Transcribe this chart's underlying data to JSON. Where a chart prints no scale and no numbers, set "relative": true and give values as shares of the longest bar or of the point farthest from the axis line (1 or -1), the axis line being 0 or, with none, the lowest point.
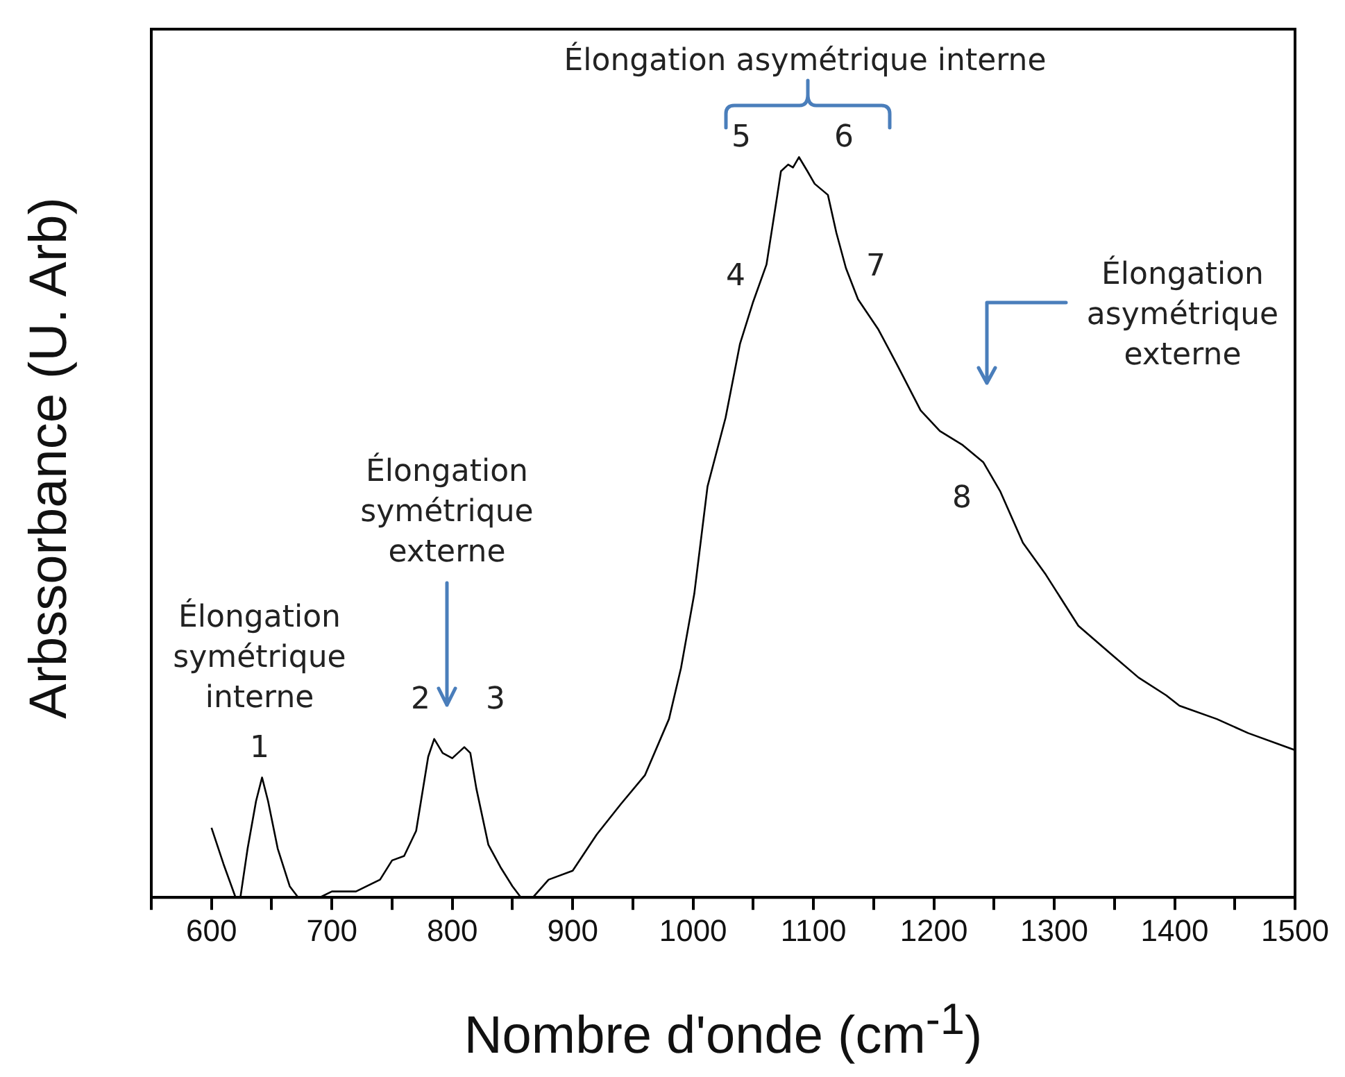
{
  "chart_data": {
    "type": "line",
    "xlabel": "Nombre d'onde (cm$^{-1}$)",
    "ylabel": "Arbssorbance (U. Arb)",
    "relative": true,
    "xlim": [
      550,
      1500
    ],
    "xticks": [
      {
        "value": 550,
        "label": null
      },
      600,
      {
        "value": 650,
        "label": null
      },
      700,
      {
        "value": 750,
        "label": null
      },
      800,
      {
        "value": 850,
        "label": null
      },
      900,
      {
        "value": 950,
        "label": null
      },
      1000,
      {
        "value": 1050,
        "label": null
      },
      1100,
      {
        "value": 1150,
        "label": null
      },
      1200,
      {
        "value": 1250,
        "label": null
      },
      1300,
      {
        "value": 1350,
        "label": null
      },
      1400,
      {
        "value": 1450,
        "label": null
      },
      1500
    ],
    "line_style": "solid",
    "marker": "none",
    "series": [
      {
        "color": "#000000",
        "x": [
          600,
          610,
          620,
          624,
          630,
          637,
          642,
          647,
          655,
          665,
          672,
          690,
          700,
          720,
          740,
          750,
          760,
          770,
          780,
          785,
          792,
          800,
          810,
          815,
          820,
          830,
          840,
          850,
          857,
          867,
          880,
          900,
          920,
          940,
          960,
          980,
          990,
          1001,
          1012,
          1027,
          1039,
          1050,
          1061,
          1070,
          1073,
          1079,
          1083,
          1088,
          1095,
          1101,
          1112,
          1119,
          1127,
          1137,
          1154,
          1170,
          1189,
          1205,
          1224,
          1241,
          1255,
          1274,
          1293,
          1320,
          1347,
          1370,
          1393,
          1404,
          1435,
          1461,
          1500
        ],
        "values": [
          0.094,
          0.045,
          0,
          0,
          0.066,
          0.13,
          0.162,
          0.13,
          0.066,
          0.015,
          0,
          0,
          0.008,
          0.008,
          0.024,
          0.05,
          0.056,
          0.09,
          0.19,
          0.214,
          0.195,
          0.188,
          0.203,
          0.195,
          0.147,
          0.071,
          0.041,
          0.015,
          0,
          0,
          0.024,
          0.036,
          0.085,
          0.126,
          0.165,
          0.241,
          0.31,
          0.41,
          0.555,
          0.648,
          0.748,
          0.805,
          0.855,
          0.949,
          0.981,
          0.99,
          0.986,
          1,
          0.981,
          0.964,
          0.949,
          0.898,
          0.85,
          0.808,
          0.767,
          0.718,
          0.658,
          0.63,
          0.611,
          0.588,
          0.549,
          0.479,
          0.436,
          0.367,
          0.329,
          0.297,
          0.273,
          0.259,
          0.241,
          0.222,
          0.199
        ]
      }
    ],
    "annotations": [
      "1",
      "2",
      "3",
      "4",
      "5",
      "6",
      "7",
      "8",
      "Élongation\nsymétrique\ninterne",
      "Élongation\nsymétrique\nexterne",
      "Élongation asymétrique interne",
      "Élongation\nasymétrique\nexterne"
    ]
  }
}
